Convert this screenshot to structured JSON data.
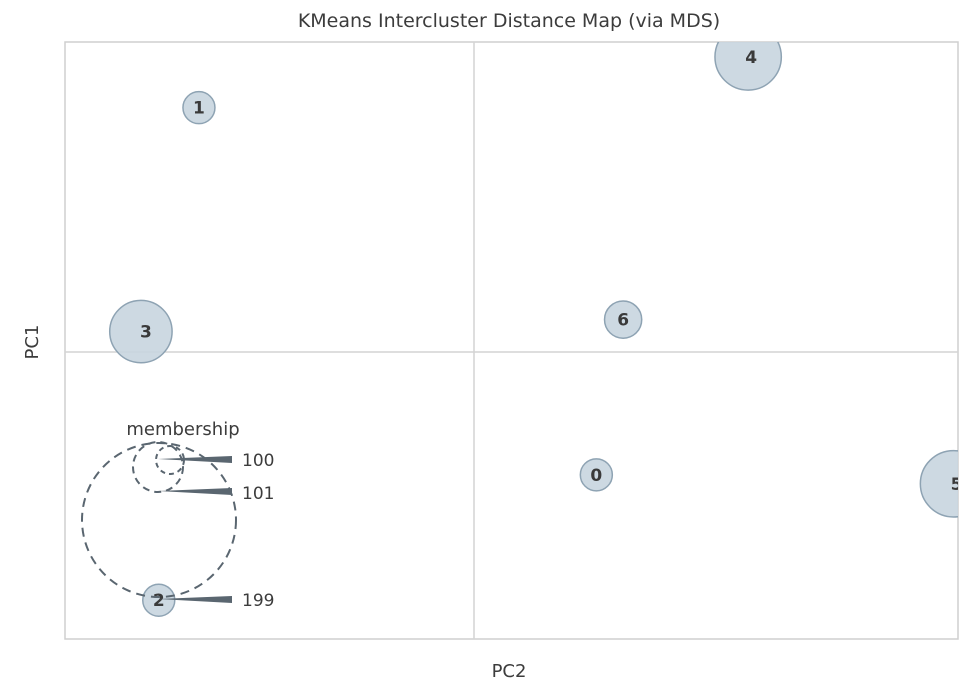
{
  "chart_data": {
    "type": "scatter",
    "title": "KMeans Intercluster Distance Map (via MDS)",
    "xlabel": "PC2",
    "ylabel": "PC1",
    "xlim": [
      -1,
      1
    ],
    "ylim": [
      -1,
      1
    ],
    "centers": [
      {
        "label": "0",
        "x": 0.19,
        "y": -0.45,
        "size": 100
      },
      {
        "label": "1",
        "x": -0.7,
        "y": 0.78,
        "size": 100
      },
      {
        "label": "2",
        "x": -0.79,
        "y": -0.87,
        "size": 100
      },
      {
        "label": "3",
        "x": -0.83,
        "y": 0.03,
        "size": 380
      },
      {
        "label": "4",
        "x": 0.53,
        "y": 0.95,
        "size": 430
      },
      {
        "label": "5",
        "x": 0.99,
        "y": -0.48,
        "size": 430
      },
      {
        "label": "6",
        "x": 0.25,
        "y": 0.07,
        "size": 135
      }
    ],
    "legend": {
      "title": "membership",
      "values": [
        "100",
        "101",
        "199"
      ],
      "placement": "lower-left"
    },
    "colors": {
      "fill": "#c8d5df",
      "edge": "#8ea3b3",
      "grid": "#d4d4d4",
      "legend": "#5a6670"
    }
  }
}
